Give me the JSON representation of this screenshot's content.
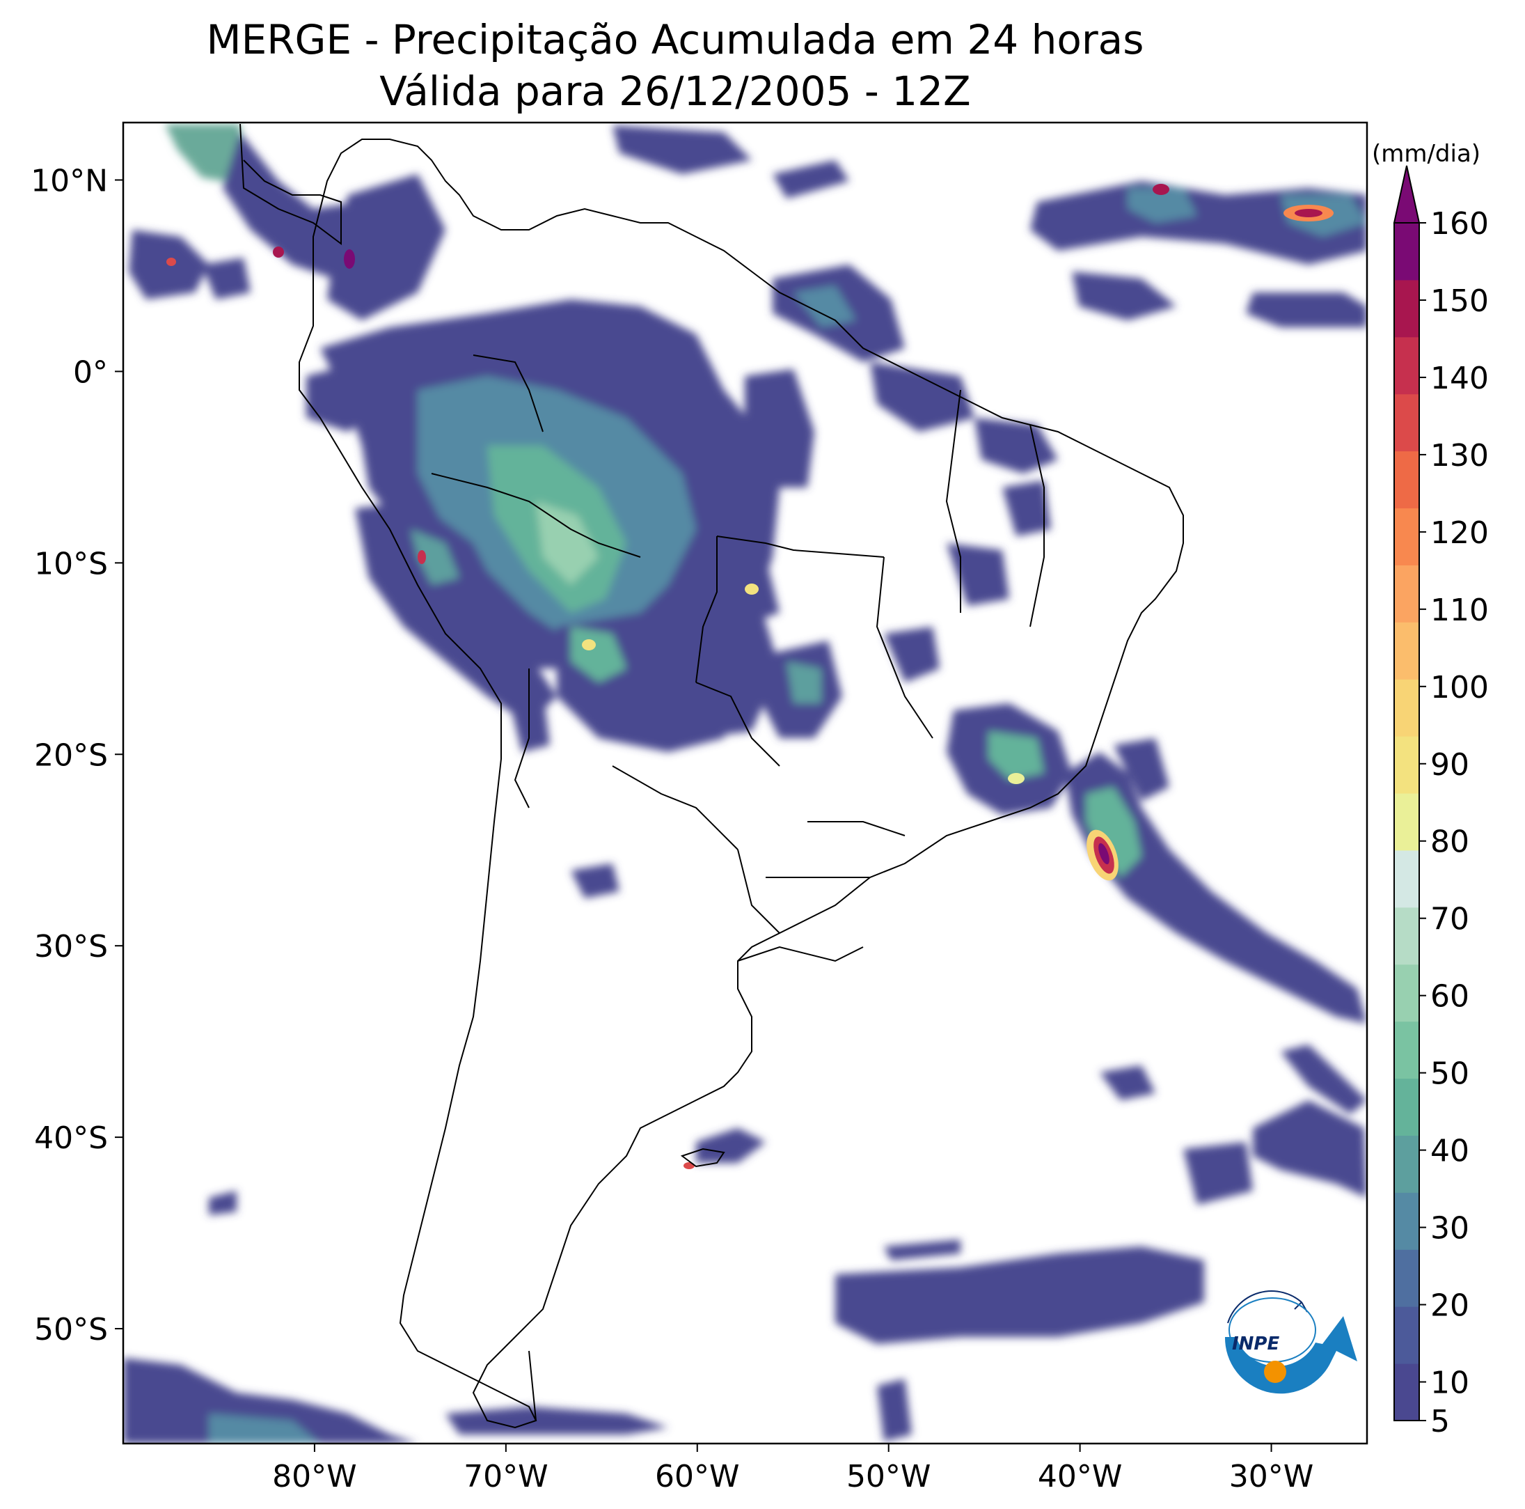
{
  "title": {
    "line1": "MERGE - Precipitação Acumulada em 24 horas",
    "line2": "Válida para 26/12/2005 - 12Z"
  },
  "map": {
    "lon_range": [
      -90,
      -25
    ],
    "lat_range": [
      -56,
      13
    ],
    "lon_ticks": [
      {
        "value": -80,
        "label": "80°W"
      },
      {
        "value": -70,
        "label": "70°W"
      },
      {
        "value": -60,
        "label": "60°W"
      },
      {
        "value": -50,
        "label": "50°W"
      },
      {
        "value": -40,
        "label": "40°W"
      },
      {
        "value": -30,
        "label": "30°W"
      }
    ],
    "lat_ticks": [
      {
        "value": 10,
        "label": "10°N"
      },
      {
        "value": 0,
        "label": "0°"
      },
      {
        "value": -10,
        "label": "10°S"
      },
      {
        "value": -20,
        "label": "20°S"
      },
      {
        "value": -30,
        "label": "30°S"
      },
      {
        "value": -40,
        "label": "40°S"
      },
      {
        "value": -50,
        "label": "50°S"
      }
    ]
  },
  "colorbar": {
    "unit": "(mm/dia)",
    "min": 5,
    "max": 160,
    "extend": "max",
    "tick_values": [
      5,
      10,
      20,
      30,
      40,
      50,
      60,
      70,
      80,
      90,
      100,
      110,
      120,
      130,
      140,
      150,
      160
    ],
    "tick_labels": [
      "5",
      "10",
      "20",
      "30",
      "40",
      "50",
      "60",
      "70",
      "80",
      "90",
      "100",
      "110",
      "120",
      "130",
      "140",
      "150",
      "160"
    ],
    "colors": [
      "#4a4890",
      "#4c5a9a",
      "#4f6fa0",
      "#558aa4",
      "#5d9f9e",
      "#64b39a",
      "#7ac3a2",
      "#98d0b0",
      "#b6dcc6",
      "#d4e8e4",
      "#eaf098",
      "#f3e27f",
      "#f8d475",
      "#fbbd6c",
      "#fba461",
      "#f8884f",
      "#ee6a46",
      "#dc4a4a",
      "#c6304e",
      "#a8164f",
      "#7a0a74"
    ],
    "extend_color": "#7a0a74"
  },
  "logo": {
    "text": "INPE",
    "colors": {
      "ring": "#1a7fc1",
      "dot": "#f39200",
      "navy": "#0a2a6a"
    }
  }
}
